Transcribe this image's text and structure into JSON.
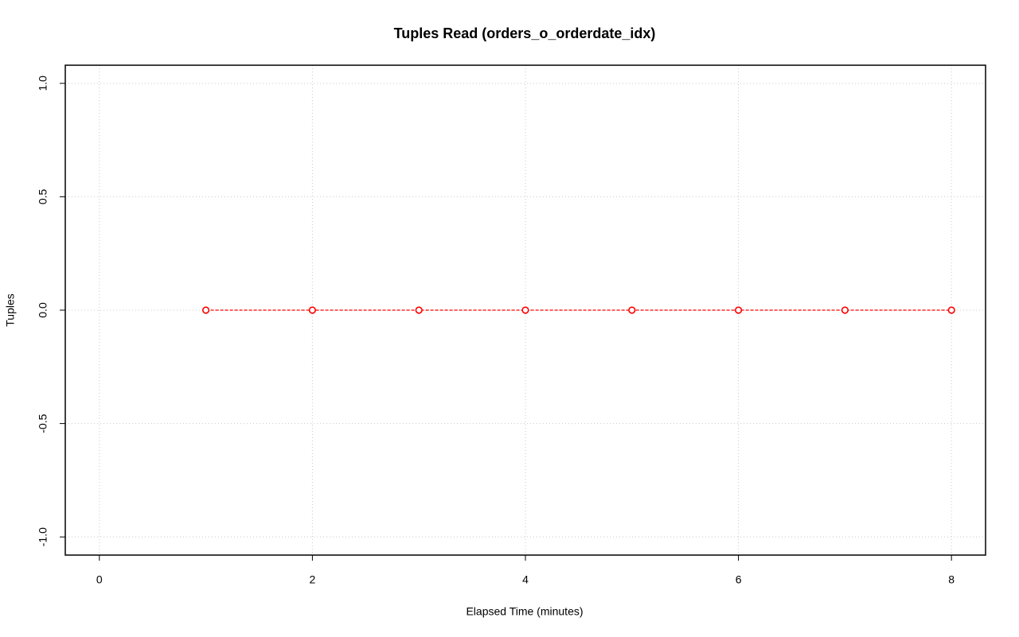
{
  "chart_data": {
    "type": "line",
    "title": "Tuples Read (orders_o_orderdate_idx)",
    "x_label": "Elapsed Time (minutes)",
    "y_label": "Tuples",
    "x": [
      1,
      2,
      3,
      4,
      5,
      6,
      7,
      8
    ],
    "series": [
      {
        "name": "Tuples Read",
        "color": "#ff0000",
        "values": [
          0,
          0,
          0,
          0,
          0,
          0,
          0,
          0
        ]
      }
    ],
    "xlim": [
      -0.32,
      8.32
    ],
    "xticks": [
      0,
      2,
      4,
      6,
      8
    ],
    "ylim": [
      -1.08,
      1.08
    ],
    "yticks": [
      {
        "value": -1,
        "label": "-1.0"
      },
      -0.5,
      {
        "value": 0,
        "label": "0.0"
      },
      0.5,
      {
        "value": 1,
        "label": "1.0"
      }
    ],
    "grid": true
  }
}
